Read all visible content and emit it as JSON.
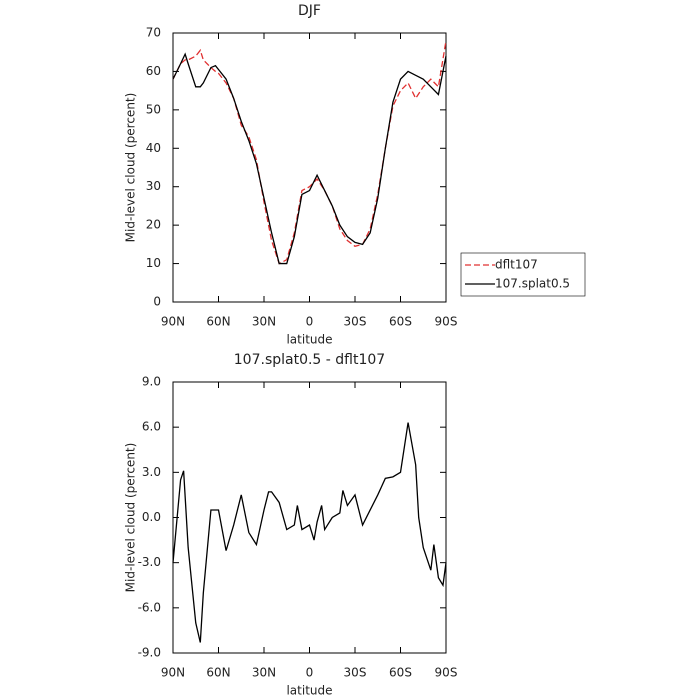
{
  "chart_data": [
    {
      "type": "line",
      "title": "DJF",
      "x_label": "latitude",
      "y_label": "Mid-level cloud (percent)",
      "x": [
        90,
        85,
        82,
        80,
        75,
        72,
        70,
        65,
        62,
        60,
        55,
        50,
        45,
        40,
        35,
        30,
        25,
        20,
        15,
        10,
        5,
        0,
        -5,
        -10,
        -15,
        -20,
        -25,
        -30,
        -35,
        -40,
        -45,
        -50,
        -55,
        -60,
        -65,
        -70,
        -75,
        -80,
        -85,
        -90
      ],
      "series": [
        {
          "name": "dflt107",
          "color": "#e03030",
          "dash": true,
          "values": [
            58,
            62,
            63,
            63,
            64,
            65.5,
            63,
            61,
            60,
            59.5,
            57,
            53,
            46,
            43,
            37,
            26,
            16,
            10,
            11,
            18,
            29,
            30,
            32,
            29,
            25,
            19,
            16,
            14.5,
            15,
            19,
            28,
            40,
            51,
            55,
            57,
            53,
            56,
            58,
            56,
            68
          ]
        },
        {
          "name": "107.splat0.5",
          "color": "#000000",
          "dash": false,
          "values": [
            58,
            62,
            64.5,
            62,
            56,
            56,
            57,
            61,
            61.5,
            60.5,
            58,
            53,
            47,
            42,
            36,
            27,
            18,
            10,
            10,
            17,
            28,
            29,
            33,
            29,
            25,
            20,
            17,
            15.5,
            15,
            18,
            27,
            40,
            52,
            58,
            60,
            59,
            58,
            56,
            54,
            64
          ]
        }
      ],
      "xlim": [
        90,
        -90
      ],
      "xticks": [
        {
          "value": 90,
          "label": "90N"
        },
        {
          "value": 60,
          "label": "60N"
        },
        {
          "value": 30,
          "label": "30N"
        },
        0,
        {
          "value": -30,
          "label": "30S"
        },
        {
          "value": -60,
          "label": "60S"
        },
        {
          "value": -90,
          "label": "90S"
        }
      ],
      "ylim": [
        0,
        70
      ],
      "yticks": [
        0,
        10,
        20,
        30,
        40,
        50,
        60,
        70
      ],
      "legend": "right"
    },
    {
      "type": "line",
      "title": "107.splat0.5 - dflt107",
      "x_label": "latitude",
      "y_label": "Mid-level cloud (percent)",
      "x": [
        90,
        85,
        83,
        80,
        75,
        72,
        70,
        65,
        60,
        55,
        50,
        45,
        40,
        35,
        30,
        27,
        25,
        20,
        15,
        10,
        8,
        5,
        0,
        -3,
        -5,
        -8,
        -10,
        -15,
        -20,
        -22,
        -25,
        -30,
        -35,
        -40,
        -45,
        -50,
        -55,
        -60,
        -65,
        -70,
        -72,
        -75,
        -80,
        -82,
        -85,
        -88,
        -90
      ],
      "series": [
        {
          "name": "107.splat0.5 - dflt107",
          "color": "#000000",
          "dash": false,
          "values": [
            -3,
            2.5,
            3.1,
            -2,
            -7,
            -8.3,
            -5,
            0.5,
            0.5,
            -2.2,
            -0.5,
            1.5,
            -1,
            -1.8,
            0.5,
            1.7,
            1.7,
            1,
            -0.8,
            -0.5,
            0.8,
            -0.8,
            -0.5,
            -1.5,
            -0.3,
            0.8,
            -0.8,
            0,
            0.3,
            1.8,
            0.8,
            1.5,
            -0.5,
            0.5,
            1.5,
            2.6,
            2.7,
            3,
            6.3,
            3.5,
            0,
            -2,
            -3.5,
            -1.8,
            -4,
            -4.5,
            -3
          ]
        }
      ],
      "xlim": [
        90,
        -90
      ],
      "xticks": [
        {
          "value": 90,
          "label": "90N"
        },
        {
          "value": 60,
          "label": "60N"
        },
        {
          "value": 30,
          "label": "30N"
        },
        0,
        {
          "value": -30,
          "label": "30S"
        },
        {
          "value": -60,
          "label": "60S"
        },
        {
          "value": -90,
          "label": "90S"
        }
      ],
      "ylim": [
        -9,
        9
      ],
      "yticks": [
        {
          "value": -9,
          "label": "-9.0"
        },
        {
          "value": -6,
          "label": "-6.0"
        },
        {
          "value": -3,
          "label": "-3.0"
        },
        {
          "value": 0,
          "label": "0.0"
        },
        {
          "value": 3,
          "label": "3.0"
        },
        {
          "value": 6,
          "label": "6.0"
        },
        {
          "value": 9,
          "label": "9.0"
        }
      ]
    }
  ]
}
